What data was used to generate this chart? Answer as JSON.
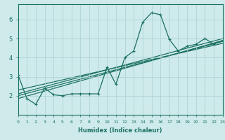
{
  "xlabel": "Humidex (Indice chaleur)",
  "bg_color": "#ceeaea",
  "grid_color": "#aacfcf",
  "line_color": "#1a7060",
  "xlim": [
    0,
    23
  ],
  "ylim": [
    1.0,
    6.8
  ],
  "xticks": [
    0,
    1,
    2,
    3,
    4,
    5,
    6,
    7,
    8,
    9,
    10,
    11,
    12,
    13,
    14,
    15,
    16,
    17,
    18,
    19,
    20,
    21,
    22,
    23
  ],
  "yticks": [
    2,
    3,
    4,
    5,
    6
  ],
  "main_series_x": [
    0,
    1,
    2,
    3,
    4,
    5,
    6,
    7,
    8,
    9,
    10,
    11,
    12,
    13,
    14,
    15,
    16,
    17,
    18,
    19,
    20,
    21,
    22,
    23
  ],
  "main_series_y": [
    3.1,
    1.85,
    1.55,
    2.4,
    2.05,
    2.0,
    2.1,
    2.1,
    2.1,
    2.1,
    3.5,
    2.6,
    4.0,
    4.35,
    5.85,
    6.35,
    6.25,
    4.95,
    4.35,
    4.6,
    4.7,
    5.0,
    4.7,
    4.9
  ],
  "trend_lines": [
    {
      "x": [
        0,
        23
      ],
      "y": [
        2.0,
        4.85
      ]
    },
    {
      "x": [
        0,
        23
      ],
      "y": [
        1.85,
        4.9
      ]
    },
    {
      "x": [
        0,
        23
      ],
      "y": [
        2.1,
        5.0
      ]
    },
    {
      "x": [
        0,
        23
      ],
      "y": [
        2.3,
        4.75
      ]
    }
  ],
  "marker_size": 3.5,
  "lw": 0.9
}
